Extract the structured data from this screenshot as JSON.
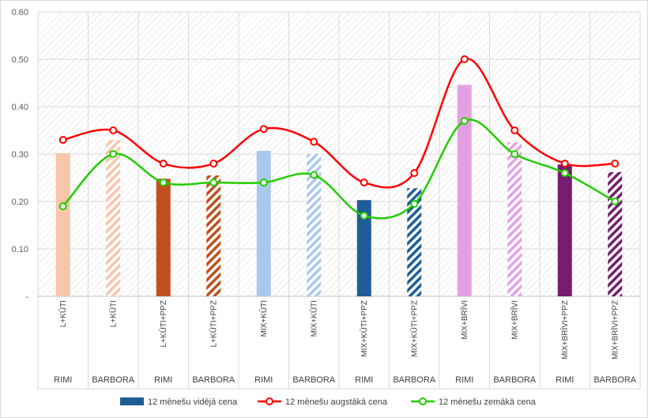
{
  "chart_data": {
    "type": "bar",
    "title": "",
    "xlabel": "",
    "ylabel": "",
    "ylim": [
      0,
      0.6
    ],
    "y_ticks": [
      "-",
      "0.10",
      "0.20",
      "0.30",
      "0.40",
      "0.50",
      "0.60"
    ],
    "grid": true,
    "legend_position": "bottom",
    "categories": [
      {
        "product": "L+KŪTI",
        "store": "RIMI",
        "color": "#f7c6a8",
        "pattern": "solid"
      },
      {
        "product": "L+KŪTI",
        "store": "BARBORA",
        "color": "#f7c6a8",
        "pattern": "hatched"
      },
      {
        "product": "L+KŪTI+PPZ",
        "store": "RIMI",
        "color": "#c0501e",
        "pattern": "solid"
      },
      {
        "product": "L+KŪTI+PPZ",
        "store": "BARBORA",
        "color": "#c0501e",
        "pattern": "hatched"
      },
      {
        "product": "MIX+KŪTI",
        "store": "RIMI",
        "color": "#a9c9ec",
        "pattern": "solid"
      },
      {
        "product": "MIX+KŪTI",
        "store": "BARBORA",
        "color": "#a9c9ec",
        "pattern": "hatched"
      },
      {
        "product": "MIX+KŪTI+PPZ",
        "store": "RIMI",
        "color": "#1f5d99",
        "pattern": "solid"
      },
      {
        "product": "MIX+KŪTI+PPZ",
        "store": "BARBORA",
        "color": "#1f5d99",
        "pattern": "hatched"
      },
      {
        "product": "MIX+BRĪVI",
        "store": "RIMI",
        "color": "#e3a1e3",
        "pattern": "solid"
      },
      {
        "product": "MIX+BRĪVI",
        "store": "BARBORA",
        "color": "#e3a1e3",
        "pattern": "hatched"
      },
      {
        "product": "MIX+BRĪVI+PPZ",
        "store": "RIMI",
        "color": "#761d6f",
        "pattern": "solid"
      },
      {
        "product": "MIX+BRĪVI+PPZ",
        "store": "BARBORA",
        "color": "#761d6f",
        "pattern": "hatched"
      }
    ],
    "series": [
      {
        "name": "12 mēnešu vidējā cena",
        "type": "bar",
        "color": "#1f5d99",
        "values": [
          0.302,
          0.33,
          0.248,
          0.255,
          0.307,
          0.3,
          0.203,
          0.228,
          0.446,
          0.325,
          0.278,
          0.262
        ]
      },
      {
        "name": "12 mēnešu augstākā cena",
        "type": "line",
        "color": "#ff0000",
        "values": [
          0.33,
          0.35,
          0.28,
          0.28,
          0.353,
          0.326,
          0.24,
          0.26,
          0.5,
          0.35,
          0.28,
          0.28
        ]
      },
      {
        "name": "12 mēnešu zemākā cena",
        "type": "line",
        "color": "#22cc00",
        "values": [
          0.19,
          0.3,
          0.24,
          0.24,
          0.24,
          0.256,
          0.17,
          0.195,
          0.37,
          0.3,
          0.26,
          0.2
        ]
      }
    ]
  }
}
